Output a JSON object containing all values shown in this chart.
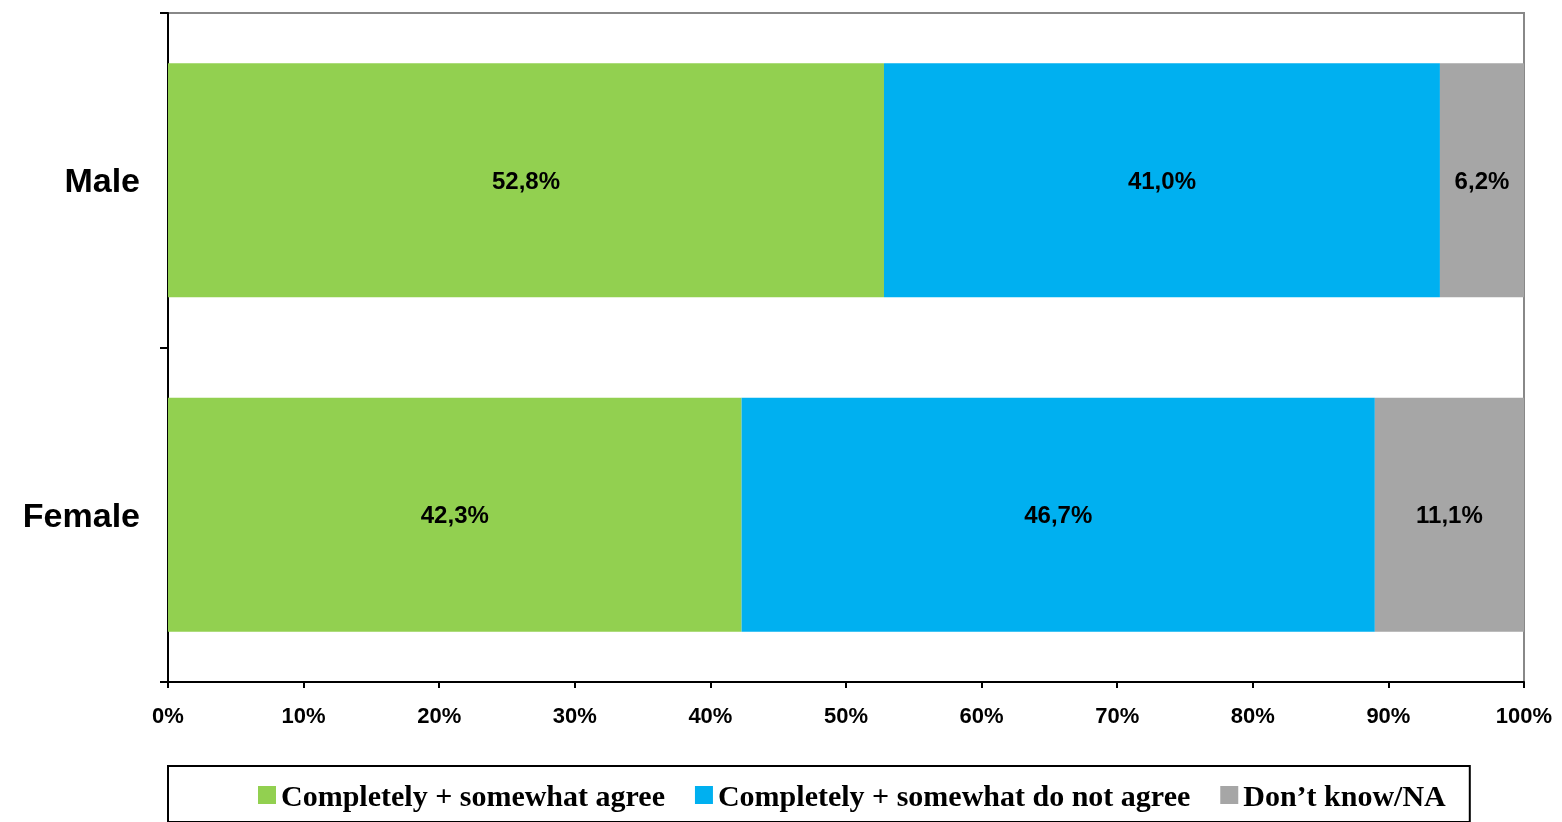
{
  "chart_data": {
    "type": "bar",
    "orientation": "horizontal",
    "stacked": true,
    "categories": [
      "Male",
      "Female"
    ],
    "series": [
      {
        "name": "Completely + somewhat agree",
        "color": "#92d050",
        "values": [
          52.8,
          42.3
        ],
        "value_labels": [
          "52,8%",
          "42,3%"
        ]
      },
      {
        "name": "Completely + somewhat do not agree",
        "color": "#00b0f0",
        "values": [
          41.0,
          46.7
        ],
        "value_labels": [
          "41,0%",
          "46,7%"
        ]
      },
      {
        "name": "Don’t know/NA",
        "color": "#a6a6a6",
        "values": [
          6.2,
          11.1
        ],
        "value_labels": [
          "6,2%",
          "11,1%"
        ]
      }
    ],
    "xlim": [
      0,
      100
    ],
    "xticks": [
      {
        "value": 0,
        "label": "0%"
      },
      {
        "value": 10,
        "label": "10%"
      },
      {
        "value": 20,
        "label": "20%"
      },
      {
        "value": 30,
        "label": "30%"
      },
      {
        "value": 40,
        "label": "40%"
      },
      {
        "value": 50,
        "label": "50%"
      },
      {
        "value": 60,
        "label": "60%"
      },
      {
        "value": 70,
        "label": "70%"
      },
      {
        "value": 80,
        "label": "80%"
      },
      {
        "value": 90,
        "label": "90%"
      },
      {
        "value": 100,
        "label": "100%"
      }
    ],
    "grid": false,
    "legend": "bottom"
  }
}
